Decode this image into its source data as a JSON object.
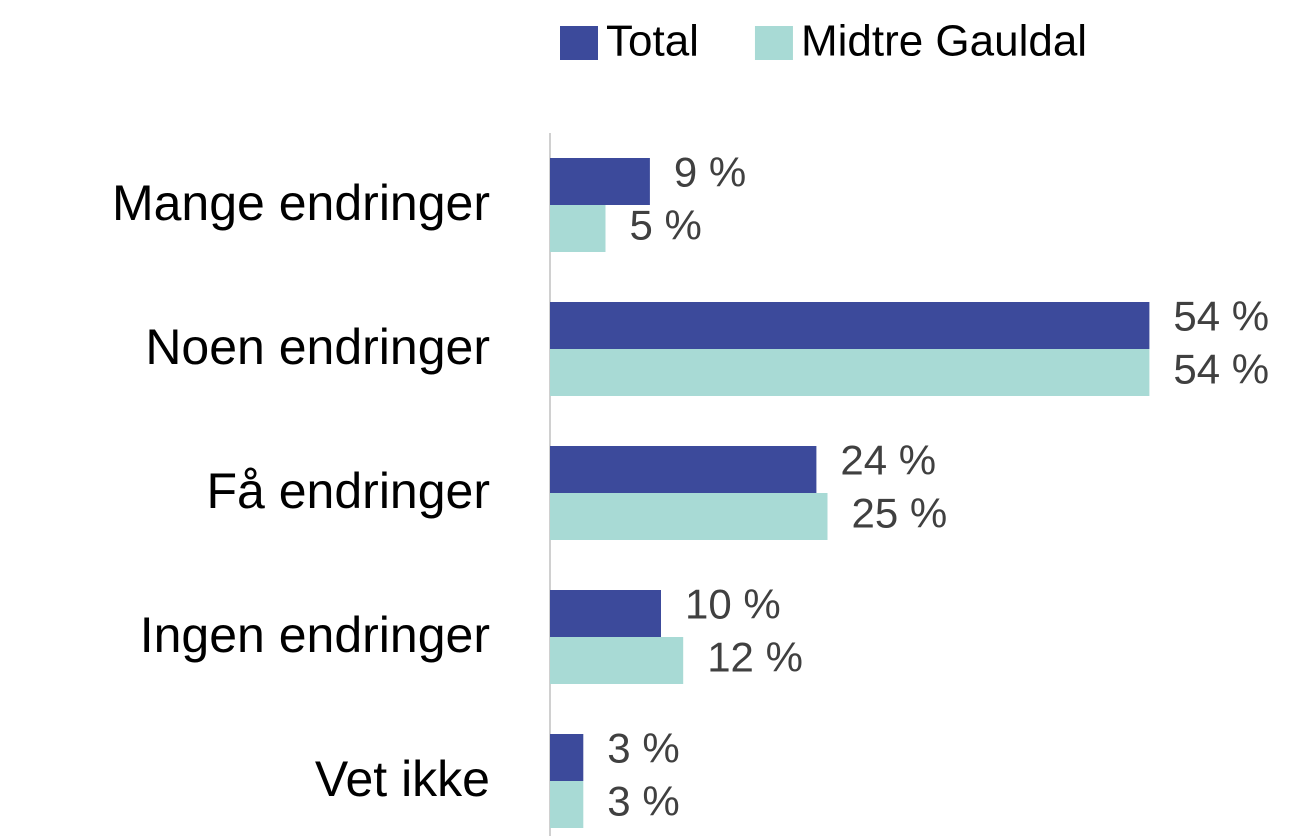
{
  "chart_data": {
    "type": "bar",
    "orientation": "horizontal",
    "categories": [
      "Mange endringer",
      "Noen endringer",
      "Få endringer",
      "Ingen endringer",
      "Vet ikke"
    ],
    "series": [
      {
        "name": "Total",
        "color": "#3c4a9b",
        "values": [
          9,
          54,
          24,
          10,
          3
        ],
        "value_labels": [
          "9 %",
          "54 %",
          "24 %",
          "10 %",
          "3 %"
        ]
      },
      {
        "name": "Midtre Gauldal",
        "color": "#a8dad5",
        "values": [
          5,
          54,
          25,
          12,
          3
        ],
        "value_labels": [
          "5 %",
          "54 %",
          "25 %",
          "12 %",
          "3 %"
        ]
      }
    ],
    "xlim": [
      0,
      60
    ],
    "legend": "top"
  }
}
